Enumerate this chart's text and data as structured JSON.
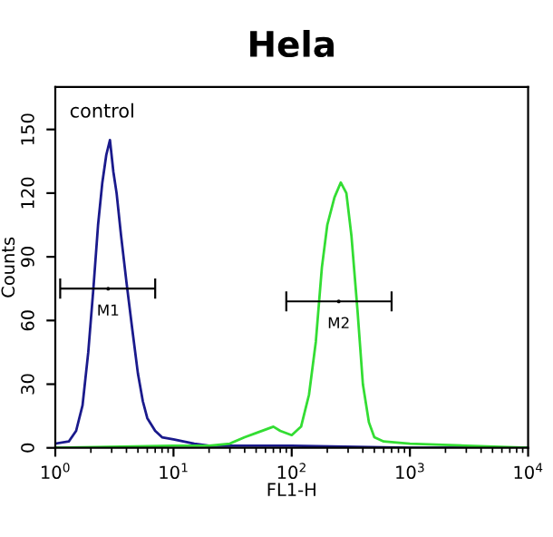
{
  "chart_data": {
    "type": "line",
    "title": "Hela",
    "xlabel": "FL1-H",
    "ylabel": "Counts",
    "log": "x",
    "xlim": [
      1,
      10000
    ],
    "ylim": [
      0,
      170
    ],
    "xticks": [
      {
        "value": 1,
        "label": "10$^{0}$"
      },
      {
        "value": 10,
        "label": "10$^{1}$"
      },
      {
        "value": 100,
        "label": "10$^{2}$"
      },
      {
        "value": 1000,
        "label": "10$^{3}$"
      },
      {
        "value": 10000,
        "label": "10$^{4}$"
      }
    ],
    "yticks": [
      0,
      30,
      60,
      90,
      120,
      150
    ],
    "grid": false,
    "legend": false,
    "annotations": [
      "control",
      {
        "text": "M1",
        "x": 2.8,
        "y": 75
      },
      {
        "text": "M2",
        "x": 250,
        "y": 69
      }
    ],
    "series": [
      {
        "color": "#1a1a8c",
        "x": [
          1,
          1.3,
          1.5,
          1.7,
          1.9,
          2.1,
          2.3,
          2.5,
          2.7,
          2.9,
          3.1,
          3.3,
          3.6,
          4.0,
          4.5,
          5.0,
          5.5,
          6,
          7,
          8,
          10,
          15,
          20,
          30,
          100,
          1000,
          10000
        ],
        "values": [
          2,
          3,
          8,
          20,
          45,
          75,
          105,
          125,
          138,
          145,
          130,
          120,
          100,
          78,
          55,
          35,
          22,
          14,
          8,
          5,
          4,
          2,
          1,
          1,
          1,
          0,
          0
        ]
      },
      {
        "color": "#33dd33",
        "x": [
          1,
          10,
          20,
          30,
          40,
          50,
          70,
          80,
          100,
          120,
          140,
          160,
          180,
          200,
          230,
          260,
          290,
          320,
          360,
          400,
          450,
          500,
          600,
          1000,
          3000,
          10000
        ],
        "values": [
          0,
          1,
          1,
          2,
          5,
          7,
          10,
          8,
          6,
          10,
          25,
          50,
          85,
          105,
          118,
          125,
          120,
          100,
          65,
          30,
          12,
          5,
          3,
          2,
          1,
          0
        ]
      },
      {
        "type": "scatter",
        "color": "#000000",
        "x": [
          2.8,
          250
        ],
        "values": [
          75,
          69
        ],
        "xerrors": [
          [
            1.1,
            7
          ],
          [
            90,
            700
          ]
        ]
      }
    ]
  }
}
